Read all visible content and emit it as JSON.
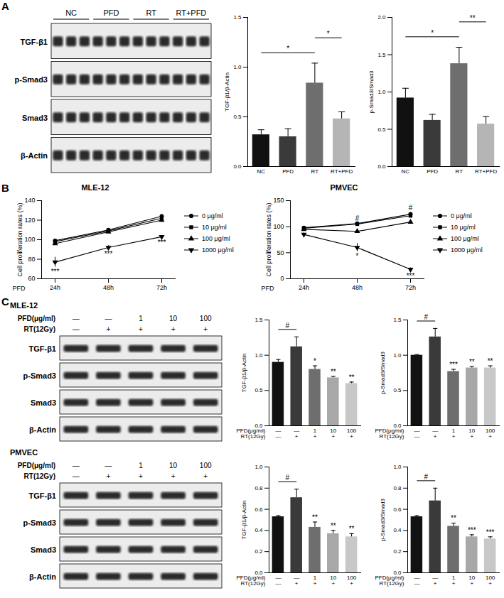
{
  "panel_labels": [
    "A",
    "B",
    "C"
  ],
  "blots": [
    {
      "panel": "A",
      "group_labels": [
        {
          "label": "NC",
          "lanes": 3
        },
        {
          "label": "PFD",
          "lanes": 3
        },
        {
          "label": "RT",
          "lanes": 3
        },
        {
          "label": "RT+PFD",
          "lanes": 3
        }
      ],
      "rows": [
        "TGF-β1",
        "p-Smad3",
        "Smad3",
        "β-Actin"
      ]
    },
    {
      "panel": "C",
      "title": "MLE-12",
      "header_rows": [
        {
          "label": "PFD(μg/ml)",
          "values": [
            "—",
            "—",
            "1",
            "10",
            "100"
          ]
        },
        {
          "label": "RT(12Gy)",
          "values": [
            "—",
            "+",
            "+",
            "+",
            "+"
          ]
        }
      ],
      "rows": [
        "TGF-β1",
        "p-Smad3",
        "Smad3",
        "β-Actin"
      ]
    },
    {
      "panel": "C",
      "title": "PMVEC",
      "header_rows": [
        {
          "label": "PFD(μg/ml)",
          "values": [
            "—",
            "—",
            "1",
            "10",
            "100"
          ]
        },
        {
          "label": "RT(12Gy)",
          "values": [
            "—",
            "+",
            "+",
            "+",
            "+"
          ]
        }
      ],
      "rows": [
        "TGF-β1",
        "p-Smad3",
        "Smad3",
        "β-Actin"
      ]
    }
  ],
  "chart_data": [
    {
      "type": "bar",
      "panel": "A",
      "ylabel": "TGF-β1/β-Actin",
      "categories": [
        "NC",
        "PFD",
        "RT",
        "RT+PFD"
      ],
      "values": [
        0.32,
        0.3,
        0.84,
        0.48
      ],
      "errors": [
        0.05,
        0.08,
        0.2,
        0.07
      ],
      "colors": [
        "#111111",
        "#3a3a3a",
        "#6e6e6e",
        "#b5b5b5"
      ],
      "ylim": [
        0,
        1.5
      ],
      "yticks": [
        {
          "value": 0,
          "label": "0.0"
        },
        {
          "value": 0.5,
          "label": "0.5"
        },
        {
          "value": 1,
          "label": "1.0"
        },
        {
          "value": 1.5,
          "label": "1.5"
        }
      ],
      "brackets": [
        {
          "between": [
            0,
            2
          ],
          "label": "*"
        },
        {
          "between": [
            2,
            3
          ],
          "label": "*"
        }
      ]
    },
    {
      "type": "bar",
      "panel": "A",
      "ylabel": "p-Smad3/Smad3",
      "categories": [
        "NC",
        "PFD",
        "RT",
        "RT+PFD"
      ],
      "values": [
        0.92,
        0.62,
        1.38,
        0.57
      ],
      "errors": [
        0.13,
        0.08,
        0.22,
        0.1
      ],
      "colors": [
        "#111111",
        "#3a3a3a",
        "#6e6e6e",
        "#b5b5b5"
      ],
      "ylim": [
        0,
        2
      ],
      "yticks": [
        {
          "value": 0,
          "label": "0.0"
        },
        {
          "value": 0.5,
          "label": "0.5"
        },
        {
          "value": 1,
          "label": "1.0"
        },
        {
          "value": 1.5,
          "label": "1.5"
        },
        {
          "value": 2,
          "label": "2.0"
        }
      ],
      "brackets": [
        {
          "between": [
            0,
            2
          ],
          "label": "*"
        },
        {
          "between": [
            2,
            3
          ],
          "label": "**"
        }
      ]
    },
    {
      "type": "line",
      "panel": "B",
      "title": "MLE-12",
      "xlabel": "PFD",
      "ylabel": "Cell proliferation rates (%)",
      "x": [
        "24h",
        "48h",
        "72h"
      ],
      "ylim": [
        60,
        140
      ],
      "yticks": [
        60,
        80,
        100,
        120,
        140
      ],
      "series": [
        {
          "name": "0 μg/ml",
          "color": "#000000",
          "marker": "circle",
          "values": [
            99,
            110,
            124
          ],
          "errors": [
            1,
            1,
            2
          ]
        },
        {
          "name": "10 μg/ml",
          "color": "#000000",
          "marker": "square",
          "values": [
            98,
            109,
            122
          ],
          "errors": [
            1,
            1,
            2
          ]
        },
        {
          "name": "100 μg/ml",
          "color": "#000000",
          "marker": "triangle",
          "values": [
            96,
            108,
            120
          ],
          "errors": [
            1,
            1,
            2
          ]
        },
        {
          "name": "1000 μg/ml",
          "color": "#000000",
          "marker": "triangle-down",
          "values": [
            77,
            92,
            103
          ],
          "errors": [
            5,
            2,
            1
          ]
        }
      ],
      "annotations": [
        {
          "series": "1000 μg/ml",
          "x": "24h",
          "label": "***",
          "position": "below"
        },
        {
          "series": "1000 μg/ml",
          "x": "48h",
          "label": "***",
          "position": "below"
        },
        {
          "series": "1000 μg/ml",
          "x": "72h",
          "label": "***",
          "position": "below"
        }
      ]
    },
    {
      "type": "line",
      "panel": "B",
      "title": "PMVEC",
      "xlabel": "PFD",
      "ylabel": "Cell proliferation rates (%)",
      "x": [
        "24h",
        "48h",
        "72h"
      ],
      "ylim": [
        0,
        150
      ],
      "yticks": [
        0,
        50,
        100,
        150
      ],
      "series": [
        {
          "name": "0 μg/ml",
          "color": "#000000",
          "marker": "circle",
          "values": [
            98,
            106,
            124
          ],
          "errors": [
            1,
            1,
            3
          ]
        },
        {
          "name": "10 μg/ml",
          "color": "#000000",
          "marker": "square",
          "values": [
            97,
            105,
            121
          ],
          "errors": [
            1,
            1,
            3
          ]
        },
        {
          "name": "100 μg/ml",
          "color": "#000000",
          "marker": "triangle",
          "values": [
            95,
            91,
            109
          ],
          "errors": [
            1,
            3,
            1
          ]
        },
        {
          "name": "1000 μg/ml",
          "color": "#000000",
          "marker": "triangle-down",
          "values": [
            85,
            60,
            18
          ],
          "errors": [
            3,
            8,
            3
          ]
        }
      ],
      "annotations": [
        {
          "series": "0 μg/ml",
          "x": "48h",
          "label": "#",
          "position": "above"
        },
        {
          "series": "0 μg/ml",
          "x": "72h",
          "label": "#",
          "position": "above"
        },
        {
          "series": "1000 μg/ml",
          "x": "48h",
          "label": "*",
          "position": "below"
        },
        {
          "series": "1000 μg/ml",
          "x": "72h",
          "label": "***",
          "position": "below"
        }
      ]
    },
    {
      "type": "bar",
      "panel": "C",
      "group": "MLE-12",
      "ylabel": "TGF-β1/β-Actin",
      "categories": [
        null,
        null,
        null,
        null,
        null
      ],
      "condition_rows": [
        {
          "label": "PFD(μg/ml)",
          "values": [
            "—",
            "—",
            "1",
            "10",
            "100"
          ]
        },
        {
          "label": "RT(12Gy)",
          "values": [
            "—",
            "+",
            "+",
            "+",
            "+"
          ]
        }
      ],
      "values": [
        0.9,
        1.12,
        0.8,
        0.68,
        0.6
      ],
      "errors": [
        0.04,
        0.14,
        0.05,
        0.02,
        0.02
      ],
      "significance": [
        null,
        null,
        "*",
        "**",
        "**"
      ],
      "colors": [
        "#111111",
        "#3a3a3a",
        "#6e6e6e",
        "#a8a8a8",
        "#c8c8c8"
      ],
      "ylim": [
        0,
        1.5
      ],
      "yticks": [
        {
          "value": 0,
          "label": "0.0"
        },
        {
          "value": 0.5,
          "label": "0.5"
        },
        {
          "value": 1,
          "label": "1.0"
        },
        {
          "value": 1.5,
          "label": "1.5"
        }
      ],
      "brackets": [
        {
          "between": [
            0,
            1
          ],
          "label": "#"
        }
      ]
    },
    {
      "type": "bar",
      "panel": "C",
      "group": "MLE-12",
      "ylabel": "p-Smad3/Smad3",
      "categories": [
        null,
        null,
        null,
        null,
        null
      ],
      "condition_rows": [
        {
          "label": "PFD(μg/ml)",
          "values": [
            "—",
            "—",
            "1",
            "10",
            "100"
          ]
        },
        {
          "label": "RT(12Gy)",
          "values": [
            "—",
            "+",
            "+",
            "+",
            "+"
          ]
        }
      ],
      "values": [
        1.0,
        1.26,
        0.77,
        0.82,
        0.82
      ],
      "errors": [
        0.01,
        0.12,
        0.03,
        0.02,
        0.03
      ],
      "significance": [
        null,
        null,
        "***",
        "**",
        "**"
      ],
      "colors": [
        "#111111",
        "#3a3a3a",
        "#6e6e6e",
        "#a8a8a8",
        "#c8c8c8"
      ],
      "ylim": [
        0,
        1.5
      ],
      "yticks": [
        {
          "value": 0,
          "label": "0.0"
        },
        {
          "value": 0.5,
          "label": "0.5"
        },
        {
          "value": 1,
          "label": "1.0"
        },
        {
          "value": 1.5,
          "label": "1.5"
        }
      ],
      "brackets": [
        {
          "between": [
            0,
            1
          ],
          "label": "#"
        }
      ]
    },
    {
      "type": "bar",
      "panel": "C",
      "group": "PMVEC",
      "ylabel": "TGF-β1/β-Actin",
      "categories": [
        null,
        null,
        null,
        null,
        null
      ],
      "condition_rows": [
        {
          "label": "PFD(μg/ml)",
          "values": [
            "—",
            "—",
            "1",
            "10",
            "100"
          ]
        },
        {
          "label": "RT(12Gy)",
          "values": [
            "—",
            "+",
            "+",
            "+",
            "+"
          ]
        }
      ],
      "values": [
        0.53,
        0.71,
        0.43,
        0.37,
        0.34
      ],
      "errors": [
        0.01,
        0.08,
        0.05,
        0.03,
        0.03
      ],
      "significance": [
        null,
        null,
        "**",
        "**",
        "**"
      ],
      "colors": [
        "#111111",
        "#3a3a3a",
        "#6e6e6e",
        "#a8a8a8",
        "#c8c8c8"
      ],
      "ylim": [
        0,
        1
      ],
      "yticks": [
        {
          "value": 0,
          "label": "0.0"
        },
        {
          "value": 0.2,
          "label": "0.2"
        },
        {
          "value": 0.4,
          "label": "0.4"
        },
        {
          "value": 0.6,
          "label": "0.6"
        },
        {
          "value": 0.8,
          "label": "0.8"
        },
        {
          "value": 1,
          "label": "1.0"
        }
      ],
      "brackets": [
        {
          "between": [
            0,
            1
          ],
          "label": "#"
        }
      ]
    },
    {
      "type": "bar",
      "panel": "C",
      "group": "PMVEC",
      "ylabel": "p-Smad3/Smad3",
      "categories": [
        null,
        null,
        null,
        null,
        null
      ],
      "condition_rows": [
        {
          "label": "PFD(μg/ml)",
          "values": [
            "—",
            "—",
            "1",
            "10",
            "100"
          ]
        },
        {
          "label": "RT(12Gy)",
          "values": [
            "—",
            "+",
            "+",
            "+",
            "+"
          ]
        }
      ],
      "values": [
        0.53,
        0.68,
        0.44,
        0.34,
        0.32
      ],
      "errors": [
        0.01,
        0.12,
        0.03,
        0.02,
        0.02
      ],
      "significance": [
        null,
        null,
        "**",
        "***",
        "***"
      ],
      "colors": [
        "#111111",
        "#3a3a3a",
        "#6e6e6e",
        "#a8a8a8",
        "#c8c8c8"
      ],
      "ylim": [
        0,
        1
      ],
      "yticks": [
        {
          "value": 0,
          "label": "0.0"
        },
        {
          "value": 0.2,
          "label": "0.2"
        },
        {
          "value": 0.4,
          "label": "0.4"
        },
        {
          "value": 0.6,
          "label": "0.6"
        },
        {
          "value": 0.8,
          "label": "0.8"
        },
        {
          "value": 1,
          "label": "1.0"
        }
      ],
      "brackets": [
        {
          "between": [
            0,
            1
          ],
          "label": "#"
        }
      ]
    }
  ]
}
